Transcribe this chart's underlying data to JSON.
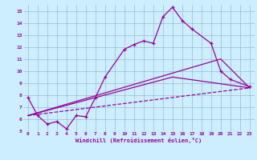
{
  "xlabel": "Windchill (Refroidissement éolien,°C)",
  "bg_color": "#cceeff",
  "grid_color": "#99bbcc",
  "line_color": "#990099",
  "xlim": [
    -0.5,
    23.5
  ],
  "ylim": [
    5,
    15.5
  ],
  "yticks": [
    5,
    6,
    7,
    8,
    9,
    10,
    11,
    12,
    13,
    14,
    15
  ],
  "xticks": [
    0,
    1,
    2,
    3,
    4,
    5,
    6,
    7,
    8,
    9,
    10,
    11,
    12,
    13,
    14,
    15,
    16,
    17,
    18,
    19,
    20,
    21,
    22,
    23
  ],
  "series_main": {
    "x": [
      0,
      1,
      2,
      3,
      4,
      5,
      6,
      7,
      8,
      10,
      11,
      12,
      13,
      14,
      15,
      16,
      17,
      19,
      20,
      21,
      23
    ],
    "y": [
      7.8,
      6.3,
      5.6,
      5.8,
      5.2,
      6.3,
      6.2,
      7.8,
      9.5,
      11.8,
      12.2,
      12.5,
      12.3,
      14.5,
      15.3,
      14.2,
      13.5,
      12.3,
      10.0,
      9.3,
      8.7
    ]
  },
  "series_line1": {
    "x": [
      0,
      23
    ],
    "y": [
      6.3,
      8.6
    ]
  },
  "series_line2": {
    "x": [
      0,
      15,
      23
    ],
    "y": [
      6.3,
      9.5,
      8.6
    ]
  },
  "series_line3": {
    "x": [
      0,
      20,
      23
    ],
    "y": [
      6.3,
      11.0,
      8.6
    ]
  }
}
